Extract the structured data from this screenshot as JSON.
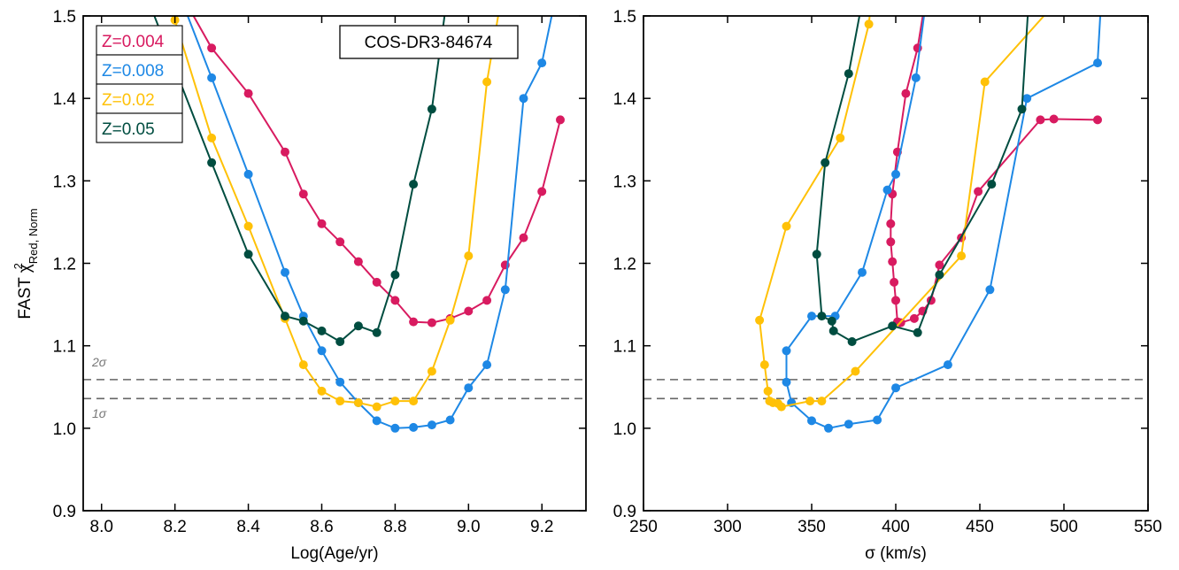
{
  "chart_data": [
    {
      "type": "line",
      "xlabel": "Log(Age/yr)",
      "ylabel": "FAST χ²Red, Norm",
      "xlim": [
        7.95,
        9.32
      ],
      "ylim": [
        0.9,
        1.5
      ],
      "xticks": [
        "8.0",
        "8.2",
        "8.4",
        "8.6",
        "8.8",
        "9.0",
        "9.2"
      ],
      "yticks": [
        "0.9",
        "1.0",
        "1.1",
        "1.2",
        "1.3",
        "1.4",
        "1.5"
      ],
      "annotation": "COS-DR3-84674",
      "legend": {
        "placement": "top-left",
        "entries": [
          "Z=0.004",
          "Z=0.008",
          "Z=0.02",
          "Z=0.05"
        ]
      },
      "hlines": [
        {
          "y": 1.059,
          "label": "2σ",
          "style": "dashed"
        },
        {
          "y": 1.036,
          "label": "1σ",
          "style": "dashed"
        }
      ],
      "series": [
        {
          "name": "Z=0.004",
          "color": "#d81b60",
          "x": [
            8.2,
            8.3,
            8.4,
            8.5,
            8.55,
            8.6,
            8.65,
            8.7,
            8.75,
            8.8,
            8.85,
            8.9,
            8.95,
            9.0,
            9.05,
            9.1,
            9.15,
            9.2,
            9.25
          ],
          "y": [
            1.54,
            1.461,
            1.406,
            1.335,
            1.284,
            1.248,
            1.226,
            1.202,
            1.177,
            1.155,
            1.129,
            1.128,
            1.133,
            1.142,
            1.155,
            1.198,
            1.231,
            1.287,
            1.374
          ]
        },
        {
          "name": "Z=0.008",
          "color": "#1e88e5",
          "x": [
            8.2,
            8.3,
            8.4,
            8.5,
            8.55,
            8.6,
            8.65,
            8.7,
            8.75,
            8.8,
            8.85,
            8.9,
            8.95,
            9.0,
            9.05,
            9.1,
            9.15,
            9.2,
            9.25
          ],
          "y": [
            1.54,
            1.425,
            1.308,
            1.189,
            1.136,
            1.094,
            1.056,
            1.031,
            1.009,
            1.0,
            1.001,
            1.004,
            1.01,
            1.049,
            1.077,
            1.168,
            1.4,
            1.443,
            1.55
          ]
        },
        {
          "name": "Z=0.02",
          "color": "#ffc107",
          "x": [
            8.2,
            8.3,
            8.4,
            8.5,
            8.55,
            8.6,
            8.65,
            8.7,
            8.75,
            8.8,
            8.85,
            8.9,
            8.95,
            9.0,
            9.05,
            9.1
          ],
          "y": [
            1.495,
            1.352,
            1.245,
            1.133,
            1.077,
            1.045,
            1.033,
            1.031,
            1.026,
            1.033,
            1.033,
            1.069,
            1.131,
            1.209,
            1.42,
            1.55
          ]
        },
        {
          "name": "Z=0.05",
          "color": "#004d40",
          "x": [
            8.1,
            8.3,
            8.4,
            8.5,
            8.55,
            8.6,
            8.65,
            8.7,
            8.75,
            8.8,
            8.85,
            8.9,
            8.95
          ],
          "y": [
            1.55,
            1.322,
            1.211,
            1.136,
            1.13,
            1.118,
            1.105,
            1.124,
            1.116,
            1.186,
            1.296,
            1.387,
            1.55
          ]
        }
      ]
    },
    {
      "type": "line",
      "xlabel": "σ (km/s)",
      "ylabel": "",
      "xlim": [
        250,
        550
      ],
      "ylim": [
        0.9,
        1.5
      ],
      "xticks": [
        "250",
        "300",
        "350",
        "400",
        "450",
        "500",
        "550"
      ],
      "yticks": [
        "0.9",
        "1.0",
        "1.1",
        "1.2",
        "1.3",
        "1.4",
        "1.5"
      ],
      "hlines": [
        {
          "y": 1.059,
          "label": "",
          "style": "dashed"
        },
        {
          "y": 1.036,
          "label": "",
          "style": "dashed"
        }
      ],
      "series": [
        {
          "name": "Z=0.004",
          "color": "#d81b60",
          "x": [
            420,
            413,
            406,
            401,
            398,
            397,
            397,
            398,
            399,
            400,
            401,
            403,
            411,
            416,
            421,
            426,
            439,
            449,
            486,
            494,
            520
          ],
          "y": [
            1.55,
            1.461,
            1.406,
            1.335,
            1.284,
            1.248,
            1.226,
            1.202,
            1.177,
            1.155,
            1.129,
            1.128,
            1.133,
            1.142,
            1.155,
            1.198,
            1.231,
            1.287,
            1.374,
            1.375,
            1.374
          ]
        },
        {
          "name": "Z=0.008",
          "color": "#1e88e5",
          "x": [
            420,
            412,
            400,
            395,
            380,
            364,
            350,
            335,
            335,
            338,
            350,
            360,
            372,
            389,
            400,
            431,
            456,
            478,
            520,
            523
          ],
          "y": [
            1.55,
            1.425,
            1.308,
            1.289,
            1.189,
            1.136,
            1.136,
            1.094,
            1.056,
            1.031,
            1.009,
            1.0,
            1.005,
            1.01,
            1.049,
            1.077,
            1.168,
            1.4,
            1.443,
            1.55
          ]
        },
        {
          "name": "Z=0.02",
          "color": "#ffc107",
          "x": [
            387,
            384,
            367,
            335,
            319,
            322,
            324,
            325,
            327,
            330,
            332,
            349,
            356,
            376,
            439,
            453,
            510
          ],
          "y": [
            1.55,
            1.49,
            1.352,
            1.245,
            1.131,
            1.077,
            1.045,
            1.033,
            1.031,
            1.03,
            1.026,
            1.033,
            1.033,
            1.069,
            1.209,
            1.42,
            1.55
          ]
        },
        {
          "name": "Z=0.05",
          "color": "#004d40",
          "x": [
            383,
            372,
            358,
            353,
            356,
            362,
            363,
            374,
            398,
            413,
            426,
            457,
            475,
            480
          ],
          "y": [
            1.55,
            1.43,
            1.322,
            1.211,
            1.136,
            1.13,
            1.118,
            1.105,
            1.124,
            1.116,
            1.186,
            1.296,
            1.387,
            1.55
          ]
        }
      ]
    }
  ]
}
